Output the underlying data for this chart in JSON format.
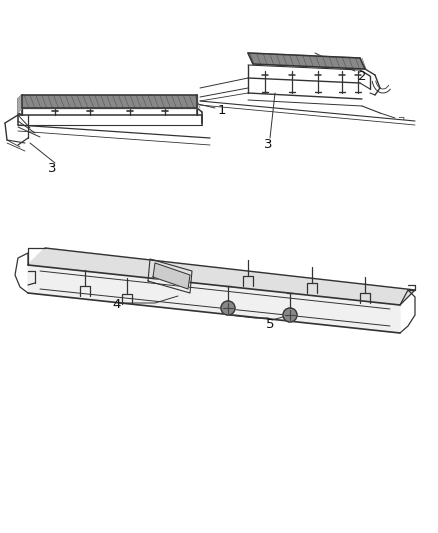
{
  "background_color": "#ffffff",
  "line_color": "#333333",
  "label_color": "#111111",
  "figsize": [
    4.38,
    5.33
  ],
  "dpi": 100,
  "label_fontsize": 9.5
}
